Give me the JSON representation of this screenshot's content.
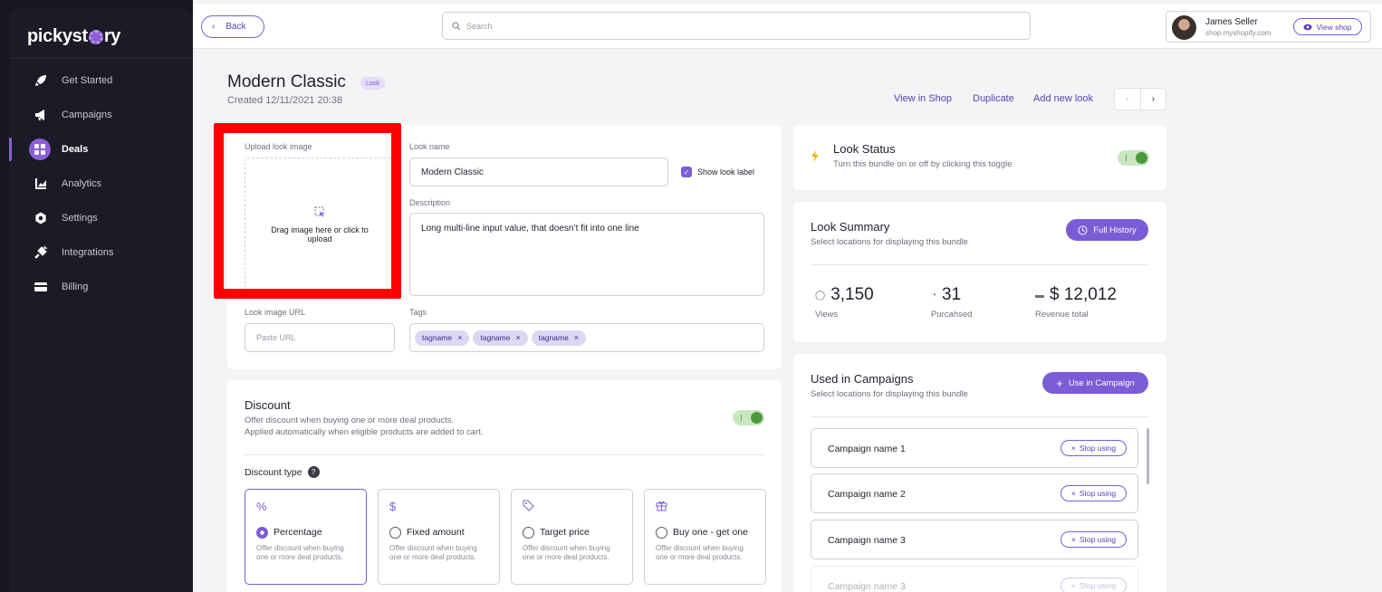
{
  "brand": {
    "logo_text_left": "pickyst",
    "logo_text_right": "ry"
  },
  "sidebar": {
    "items": [
      {
        "label": "Get Started",
        "icon": "rocket-icon"
      },
      {
        "label": "Campaigns",
        "icon": "megaphone-icon"
      },
      {
        "label": "Deals",
        "icon": "grid-icon",
        "active": true
      },
      {
        "label": "Analytics",
        "icon": "chart-icon"
      },
      {
        "label": "Settings",
        "icon": "gear-icon"
      },
      {
        "label": "Integrations",
        "icon": "plug-icon"
      },
      {
        "label": "Billing",
        "icon": "card-icon"
      }
    ]
  },
  "header": {
    "back_label": "Back",
    "search_placeholder": "Search",
    "user_name": "James Seller",
    "user_shop": "shop.myshopify.com",
    "view_shop_label": "View shop"
  },
  "page": {
    "title": "Modern Classic",
    "badge": "Look",
    "created": "Created 12/11/2021 20:38",
    "links": {
      "view": "View in Shop",
      "duplicate": "Duplicate",
      "add": "Add new look"
    }
  },
  "look_form": {
    "upload_label": "Upload look image",
    "dropzone_text": "Drag image here or click to upload",
    "name_label": "Look name",
    "name_value": "Modern Classic",
    "show_label_text": "Show look label",
    "description_label": "Description",
    "description_value": "Long multi-line input value, that doesn’t fit into one line",
    "url_label": "Look image URL",
    "url_placeholder": "Paste URL",
    "tags_label": "Tags",
    "tags": [
      "tagname",
      "tagname",
      "tagname"
    ]
  },
  "discount": {
    "title": "Discount",
    "desc_line1": "Offer discount when buying one or more deal products.",
    "desc_line2": "Applied automatically when eligible products are added to cart.",
    "enabled": true,
    "type_label": "Discount type",
    "help_glyph": "?",
    "types": [
      {
        "symbol": "%",
        "title": "Percentage",
        "desc": "Offer discount when buying one or more deal products.",
        "selected": true
      },
      {
        "symbol": "$",
        "title": "Fixed amount",
        "desc": "Offer discount when buying one or more deal products.",
        "selected": false
      },
      {
        "symbol": "tag-icon",
        "title": "Target price",
        "desc": "Offer discount when buying one or more deal products.",
        "selected": false
      },
      {
        "symbol": "gift-icon",
        "title": "Buy one - get one",
        "desc": "Offer discount when buying one or more deal products.",
        "selected": false
      }
    ]
  },
  "look_status": {
    "title": "Look Status",
    "desc": "Turn this bundle on or off by clicking this toggle",
    "enabled": true
  },
  "summary": {
    "title": "Look Summary",
    "desc": "Select locations for displaying this bundle",
    "history_label": "Full History",
    "stats": [
      {
        "value": "3,150",
        "label": "Views",
        "icon": "eye-icon"
      },
      {
        "value": "31",
        "label": "Purcahsed",
        "icon": "bag-icon"
      },
      {
        "value": "$ 12,012",
        "label": "Revenue total",
        "icon": "wallet-icon"
      }
    ]
  },
  "campaigns": {
    "title": "Used in Campaigns",
    "desc": "Select locations for displaying this bundle",
    "use_label": "Use in Campaign",
    "stop_label": "Stop using",
    "items": [
      "Campaign name 1",
      "Campaign name 2",
      "Campaign name 3",
      "Campaign name 3"
    ]
  },
  "colors": {
    "accent": "#7c5cd6",
    "sidebar": "#1b1b27",
    "highlight": "#ff0000",
    "toggle_on": "#4a9a3d"
  }
}
